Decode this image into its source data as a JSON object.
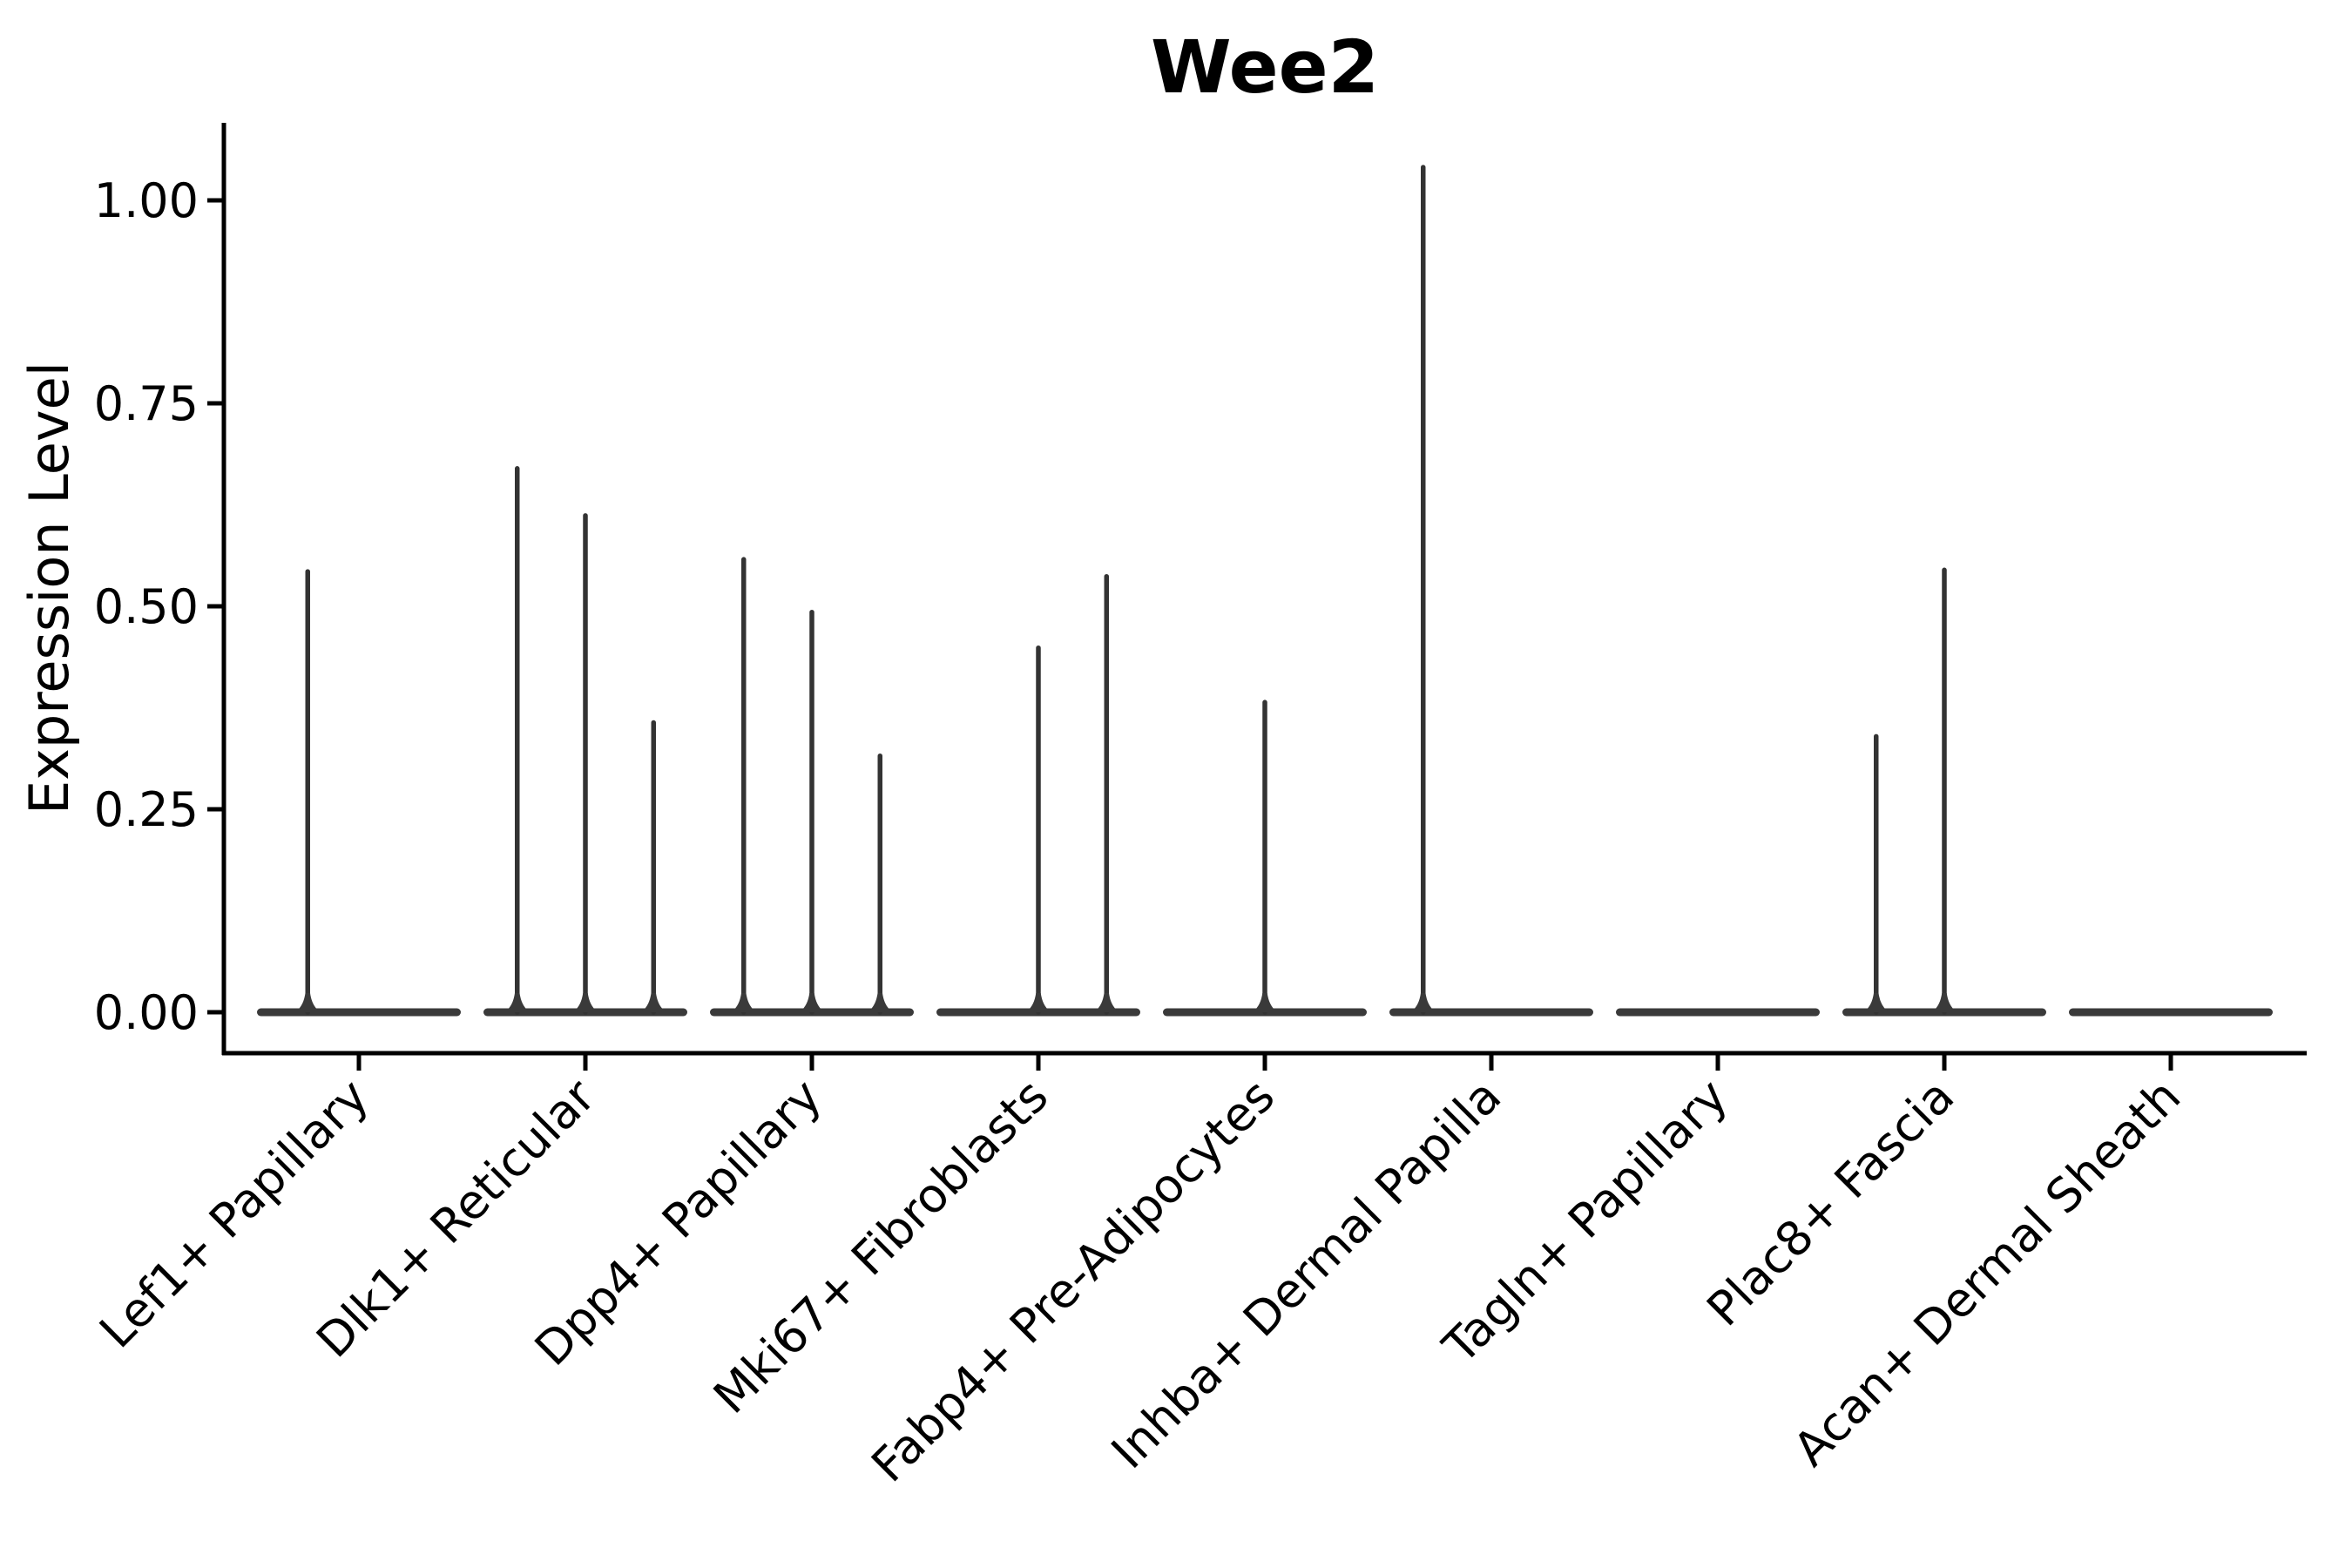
{
  "title": "Wee2",
  "y_axis": {
    "label": "Expression Level",
    "tick_labels": [
      "0.00",
      "0.25",
      "0.50",
      "0.75",
      "1.00"
    ],
    "tick_values": [
      0.0,
      0.25,
      0.5,
      0.75,
      1.0
    ]
  },
  "chart_data": {
    "type": "violin",
    "title": "Wee2",
    "xlabel": "",
    "ylabel": "Expression Level",
    "ylim": [
      -0.05,
      1.095
    ],
    "yticks": [
      0.0,
      0.25,
      0.5,
      0.75,
      1.0
    ],
    "ytick_labels": [
      "0.00",
      "0.25",
      "0.50",
      "0.75",
      "1.00"
    ],
    "grid": false,
    "legend": "none",
    "x_tick_rotation": 45,
    "violin_color": "#3a3a3a",
    "axis_color": "#000000",
    "violin_width_frac": 0.9,
    "note": "Violins are collapsed flat at 0 with thin density spikes where rare cells express the gene; x_frac is the spike position across the violin width (0=left edge, 1=right edge), value is the expression level at the spike tip.",
    "categories": [
      "Lef1+ Papillary",
      "Dlk1+ Reticular",
      "Dpp4+ Papillary",
      "Mki67+ Fibroblasts",
      "Fabp4+ Pre-Adipocytes",
      "Inhba+ Dermal Papilla",
      "Tagln+ Papillary",
      "Plac8+ Fascia",
      "Acan+ Dermal Sheath"
    ],
    "violins": [
      {
        "label": "Lef1+ Papillary",
        "peaks": [
          {
            "x_frac": 0.25,
            "value": 0.546
          }
        ]
      },
      {
        "label": "Dlk1+ Reticular",
        "peaks": [
          {
            "x_frac": 0.167,
            "value": 0.673
          },
          {
            "x_frac": 0.5,
            "value": 0.615
          },
          {
            "x_frac": 0.833,
            "value": 0.36
          }
        ]
      },
      {
        "label": "Dpp4+ Papillary",
        "peaks": [
          {
            "x_frac": 0.167,
            "value": 0.561
          },
          {
            "x_frac": 0.5,
            "value": 0.496
          },
          {
            "x_frac": 0.833,
            "value": 0.319
          }
        ]
      },
      {
        "label": "Mki67+ Fibroblasts",
        "peaks": [
          {
            "x_frac": 0.5,
            "value": 0.452
          },
          {
            "x_frac": 0.833,
            "value": 0.54
          }
        ]
      },
      {
        "label": "Fabp4+ Pre-Adipocytes",
        "peaks": [
          {
            "x_frac": 0.5,
            "value": 0.385
          }
        ]
      },
      {
        "label": "Inhba+ Dermal Papilla",
        "peaks": [
          {
            "x_frac": 0.167,
            "value": 1.044
          }
        ]
      },
      {
        "label": "Tagln+ Papillary",
        "peaks": []
      },
      {
        "label": "Plac8+ Fascia",
        "peaks": [
          {
            "x_frac": 0.167,
            "value": 0.343
          },
          {
            "x_frac": 0.5,
            "value": 0.548
          }
        ]
      },
      {
        "label": "Acan+ Dermal Sheath",
        "peaks": []
      }
    ]
  }
}
